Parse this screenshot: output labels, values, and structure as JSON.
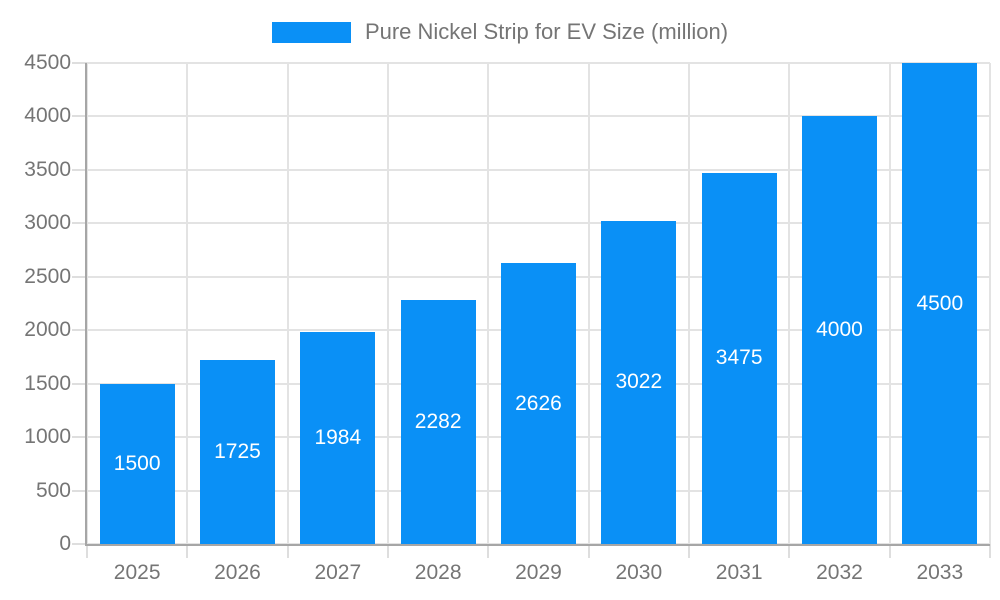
{
  "legend": {
    "label": "Pure Nickel Strip for EV Size (million)"
  },
  "chart_data": {
    "type": "bar",
    "title": "Pure Nickel Strip for EV Size (million)",
    "legend_position": "top",
    "categories": [
      "2025",
      "2026",
      "2027",
      "2028",
      "2029",
      "2030",
      "2031",
      "2032",
      "2033"
    ],
    "series": [
      {
        "name": "Pure Nickel Strip for EV Size (million)",
        "values": [
          1500,
          1725,
          1984,
          2282,
          2626,
          3022,
          3475,
          4000,
          4500
        ]
      }
    ],
    "value_labels_shown": true,
    "xlabel": "",
    "ylabel": "",
    "ylim": [
      0,
      4500
    ],
    "ytick_step": 500,
    "yticks": [
      0,
      500,
      1000,
      1500,
      2000,
      2500,
      3000,
      3500,
      4000,
      4500
    ],
    "grid": "both",
    "colors": {
      "bar": "#0A90F6",
      "grid": "#E3E3E3",
      "tick": "#DEDEDE",
      "axis": "#A6A6A6",
      "text": "#757575",
      "value_label": "#FFFFFF",
      "background": "#FFFFFF"
    }
  }
}
